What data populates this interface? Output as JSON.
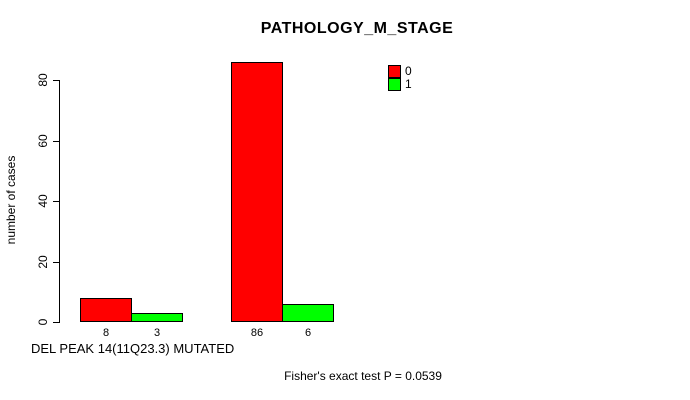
{
  "chart_data": {
    "type": "bar",
    "title": "PATHOLOGY_M_STAGE",
    "xlabel": "DEL PEAK 14(11Q23.3) MUTATED",
    "ylabel": "number of cases",
    "annotation": "Fisher's exact test P = 0.0539",
    "ylim": [
      0,
      80
    ],
    "yticks": [
      0,
      20,
      40,
      60,
      80
    ],
    "grid": false,
    "legend_position": "top-right-inside",
    "series": [
      {
        "name": "0",
        "color": "#FF0000",
        "values": [
          8,
          86
        ]
      },
      {
        "name": "1",
        "color": "#00FF00",
        "values": [
          3,
          6
        ]
      }
    ],
    "bar_value_labels": [
      [
        8,
        3
      ],
      [
        86,
        6
      ]
    ],
    "legend": [
      {
        "label": "0",
        "color": "#FF0000"
      },
      {
        "label": "1",
        "color": "#00FF00"
      }
    ]
  }
}
